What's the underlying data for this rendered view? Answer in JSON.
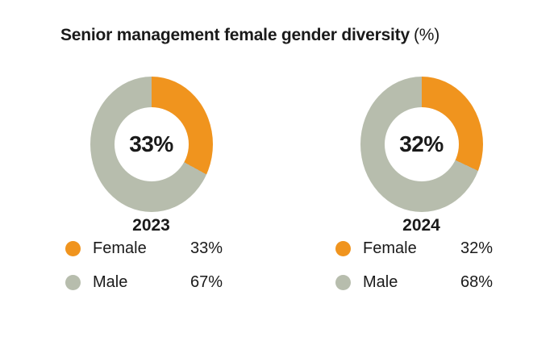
{
  "title": {
    "main": "Senior management female gender diversity",
    "suffix": "(%)"
  },
  "colors": {
    "female": "#F0941E",
    "male": "#B7BDAD",
    "text": "#1A1A1A",
    "background": "#FFFFFF"
  },
  "chart_data": [
    {
      "type": "pie",
      "variant": "donut",
      "year": "2023",
      "center_label": "33%",
      "categories": [
        "Female",
        "Male"
      ],
      "values": [
        33,
        67
      ],
      "start_angle_deg": 0,
      "direction": "clockwise",
      "legend_position": "below",
      "legend": [
        {
          "label": "Female",
          "value": "33%"
        },
        {
          "label": "Male",
          "value": "67%"
        }
      ]
    },
    {
      "type": "pie",
      "variant": "donut",
      "year": "2024",
      "center_label": "32%",
      "categories": [
        "Female",
        "Male"
      ],
      "values": [
        32,
        68
      ],
      "start_angle_deg": 0,
      "direction": "clockwise",
      "legend_position": "below",
      "legend": [
        {
          "label": "Female",
          "value": "32%"
        },
        {
          "label": "Male",
          "value": "68%"
        }
      ]
    }
  ]
}
